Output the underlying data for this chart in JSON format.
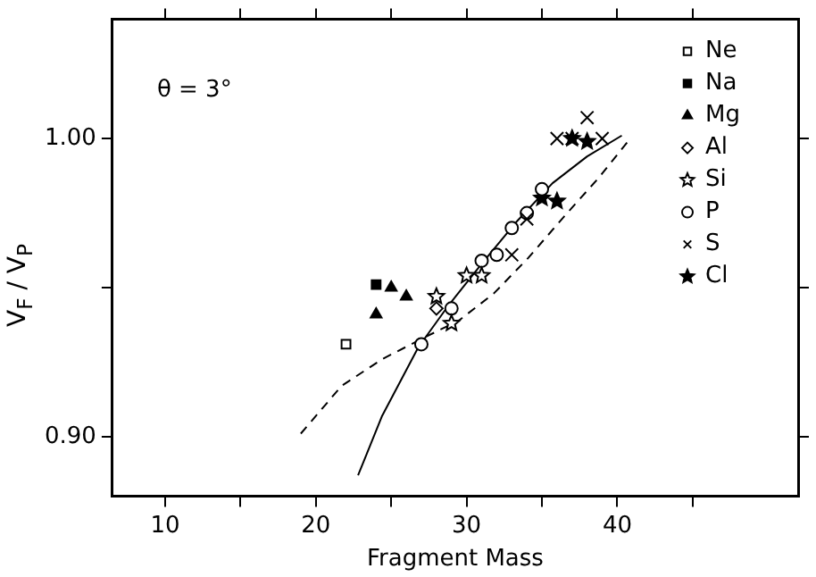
{
  "chart_data": {
    "type": "scatter",
    "xlabel": "Fragment Mass",
    "ylabel": "V$_{F}$ / V$_{P}$",
    "annotations": [
      "θ = 3°"
    ],
    "xlim": [
      6.5,
      52
    ],
    "xticks": [
      10,
      {
        "value": 15,
        "label": null
      },
      20,
      {
        "value": 25,
        "label": null
      },
      30,
      {
        "value": 35,
        "label": null
      },
      40,
      {
        "value": 45,
        "label": null
      }
    ],
    "ylim": [
      0.88,
      1.04
    ],
    "yticks": [
      {
        "value": 0.9,
        "label": "0.90"
      },
      {
        "value": 0.95,
        "label": null
      },
      {
        "value": 1.0,
        "label": "1.00"
      }
    ],
    "grid": false,
    "legend": "top right",
    "series": [
      {
        "name": "Ne",
        "color": "#000000",
        "marker": "square",
        "x": [
          22
        ],
        "values": [
          0.931
        ]
      },
      {
        "name": "Na",
        "color": "#000000",
        "marker": "square",
        "x": [
          24
        ],
        "values": [
          0.951
        ]
      },
      {
        "name": "Mg",
        "color": "#000000",
        "marker": "triangle",
        "x": [
          24,
          25,
          26
        ],
        "values": [
          0.941,
          0.95,
          0.947
        ]
      },
      {
        "name": "Al",
        "color": "#000000",
        "marker": "diamond",
        "x": [
          28
        ],
        "values": [
          0.943
        ]
      },
      {
        "name": "Si",
        "color": "#000000",
        "marker": "star",
        "x": [
          28,
          29,
          30,
          31
        ],
        "values": [
          0.947,
          0.938,
          0.954,
          0.954
        ]
      },
      {
        "name": "P",
        "color": "#000000",
        "marker": "circle",
        "x": [
          27,
          29,
          31,
          32,
          33,
          34,
          35
        ],
        "values": [
          0.931,
          0.943,
          0.959,
          0.961,
          0.97,
          0.975,
          0.983
        ]
      },
      {
        "name": "S",
        "color": "#000000",
        "marker": "cross",
        "x": [
          33,
          34,
          36,
          37,
          38,
          39
        ],
        "values": [
          0.961,
          0.973,
          1.0,
          1.0,
          1.007,
          1.0
        ]
      },
      {
        "name": "Cl",
        "color": "#000000",
        "marker": "star",
        "x": [
          35,
          36,
          37,
          38
        ],
        "values": [
          0.98,
          0.979,
          1.0,
          0.999
        ]
      },
      {
        "type": "line",
        "color": "#000000",
        "line_style": "solid",
        "marker": "none",
        "x": [
          22.8,
          24.4,
          26.8,
          28.8,
          31,
          33.3,
          35.7,
          38,
          40.3
        ],
        "values": [
          0.887,
          0.907,
          0.93,
          0.944,
          0.958,
          0.972,
          0.985,
          0.994,
          1.001
        ]
      },
      {
        "type": "line",
        "color": "#000000",
        "line_style": "dashed",
        "marker": "none",
        "x": [
          19,
          21.7,
          24.4,
          27.1,
          29.5,
          31.8,
          34.1,
          36.5,
          38.8,
          40.7
        ],
        "values": [
          0.901,
          0.917,
          0.926,
          0.933,
          0.939,
          0.948,
          0.96,
          0.974,
          0.987,
          0.999
        ]
      }
    ]
  }
}
